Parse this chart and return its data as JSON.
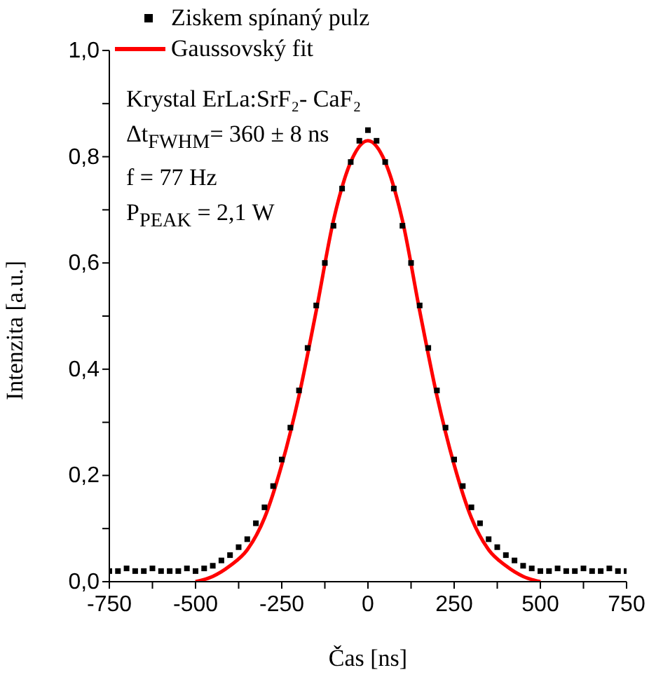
{
  "chart_data": {
    "type": "scatter",
    "xlabel": "Čas [ns]",
    "ylabel": "Intenzita [a.u.]",
    "xlim": [
      -750,
      750
    ],
    "xticks": [
      -750,
      {
        "value": -625,
        "label": null
      },
      -500,
      {
        "value": -375,
        "label": null
      },
      -250,
      {
        "value": -125,
        "label": null
      },
      0,
      {
        "value": 125,
        "label": null
      },
      250,
      {
        "value": 375,
        "label": null
      },
      500,
      {
        "value": 625,
        "label": null
      },
      750
    ],
    "ylim": [
      0,
      1
    ],
    "yticks": [
      {
        "value": 0,
        "label": "0,0"
      },
      {
        "value": 0.1,
        "label": null
      },
      {
        "value": 0.2,
        "label": "0,2"
      },
      {
        "value": 0.3,
        "label": null
      },
      {
        "value": 0.4,
        "label": "0,4"
      },
      {
        "value": 0.5,
        "label": null
      },
      {
        "value": 0.6,
        "label": "0,6"
      },
      {
        "value": 0.7,
        "label": null
      },
      {
        "value": 0.8,
        "label": "0,8"
      },
      {
        "value": 0.9,
        "label": null
      },
      {
        "value": 1,
        "label": "1,0"
      }
    ],
    "legend": "top left",
    "grid": false,
    "annotations": [
      "Krystal ErLa:SrF₂- CaF₂",
      "Δt$_{FWHM}$= 360 ± 8 ns",
      "f = 77 Hz",
      "P$_{PEAK}$ = 2,1 W"
    ],
    "series": [
      {
        "name": "Ziskem spínaný pulz",
        "marker": "square",
        "color": "#000000",
        "x": [
          -750,
          -725,
          -700,
          -675,
          -650,
          -625,
          -600,
          -575,
          -550,
          -525,
          -500,
          -475,
          -450,
          -425,
          -400,
          -375,
          -350,
          -325,
          -300,
          -275,
          -250,
          -225,
          -200,
          -175,
          -150,
          -125,
          -100,
          -75,
          -50,
          -25,
          0,
          25,
          50,
          75,
          100,
          125,
          150,
          175,
          200,
          225,
          250,
          275,
          300,
          325,
          350,
          375,
          400,
          425,
          450,
          475,
          500,
          525,
          550,
          575,
          600,
          625,
          650,
          675,
          700,
          725,
          750
        ],
        "values": [
          0.02,
          0.02,
          0.025,
          0.02,
          0.02,
          0.025,
          0.02,
          0.02,
          0.02,
          0.025,
          0.02,
          0.025,
          0.03,
          0.04,
          0.05,
          0.065,
          0.08,
          0.11,
          0.14,
          0.18,
          0.23,
          0.29,
          0.36,
          0.44,
          0.52,
          0.6,
          0.67,
          0.74,
          0.79,
          0.83,
          0.85,
          0.83,
          0.79,
          0.74,
          0.67,
          0.6,
          0.52,
          0.44,
          0.36,
          0.29,
          0.23,
          0.18,
          0.14,
          0.11,
          0.08,
          0.065,
          0.05,
          0.04,
          0.03,
          0.025,
          0.02,
          0.02,
          0.025,
          0.02,
          0.02,
          0.025,
          0.02,
          0.02,
          0.025,
          0.02,
          0.02
        ]
      },
      {
        "name": "Gaussovský fit",
        "type": "line",
        "marker": "none",
        "color": "#ff0000",
        "x": [
          -500,
          -450,
          -400,
          -350,
          -300,
          -250,
          -200,
          -150,
          -100,
          -50,
          0,
          50,
          100,
          150,
          200,
          250,
          300,
          350,
          400,
          450,
          500
        ],
        "values": [
          0,
          0.01,
          0.03,
          0.06,
          0.12,
          0.22,
          0.35,
          0.51,
          0.68,
          0.79,
          0.83,
          0.79,
          0.68,
          0.51,
          0.35,
          0.22,
          0.12,
          0.06,
          0.03,
          0.01,
          0
        ]
      }
    ]
  }
}
